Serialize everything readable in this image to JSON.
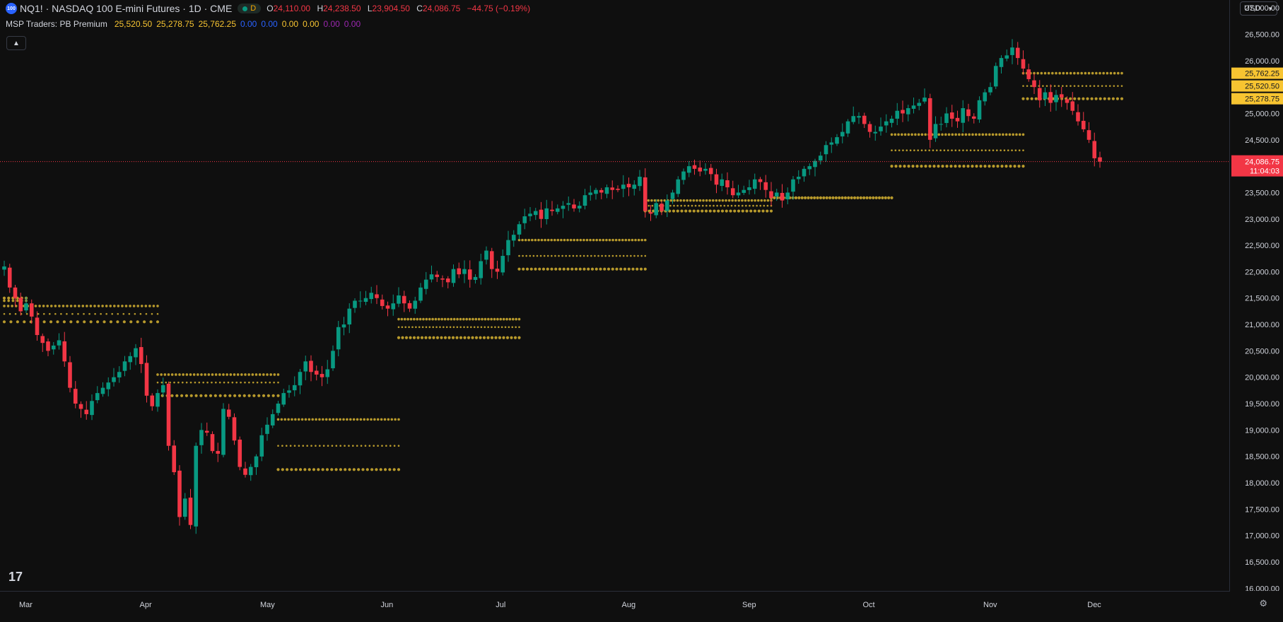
{
  "header": {
    "logo_text": "100",
    "title": "NQ1! · NASDAQ 100 E-mini Futures · 1D · CME",
    "interval_badge": "D",
    "ohlc": [
      {
        "k": "O",
        "v": "24,110.00"
      },
      {
        "k": "H",
        "v": "24,238.50"
      },
      {
        "k": "L",
        "v": "23,904.50"
      },
      {
        "k": "C",
        "v": "24,086.75"
      }
    ],
    "change": "−44.75 (−0.19%)"
  },
  "indicator": {
    "name": "MSP Traders: PB Premium",
    "values": [
      {
        "v": "25,520.50",
        "color": "#f7c431"
      },
      {
        "v": "25,278.75",
        "color": "#f7c431"
      },
      {
        "v": "25,762.25",
        "color": "#f7c431"
      },
      {
        "v": "0.00",
        "color": "#2962ff"
      },
      {
        "v": "0.00",
        "color": "#2962ff"
      },
      {
        "v": "0.00",
        "color": "#f7c431"
      },
      {
        "v": "0.00",
        "color": "#f7c431"
      },
      {
        "v": "0.00",
        "color": "#9c27b0"
      },
      {
        "v": "0.00",
        "color": "#9c27b0"
      }
    ]
  },
  "controls": {
    "collapse_icon": "chevron-up-icon",
    "currency": "USD",
    "tv_logo": "17"
  },
  "colors": {
    "up": "#089981",
    "down": "#f23645",
    "level": "#b89a2c",
    "bg": "#0f0f0f"
  },
  "chart_data": {
    "type": "candlestick",
    "y_ticks": [
      16000,
      16500,
      17000,
      17500,
      18000,
      18500,
      19000,
      19500,
      20000,
      20500,
      21000,
      21500,
      22000,
      22500,
      23000,
      23500,
      24000,
      24500,
      25000,
      25500,
      26000,
      26500,
      27000
    ],
    "ylim": [
      15950,
      27150
    ],
    "x_labels": [
      "Mar",
      "Apr",
      "May",
      "Jun",
      "Jul",
      "Aug",
      "Sep",
      "Oct",
      "Nov",
      "Dec"
    ],
    "months": [
      {
        "label": "Mar",
        "start_index": 4
      },
      {
        "label": "Apr",
        "start_index": 26
      },
      {
        "label": "May",
        "start_index": 48
      },
      {
        "label": "Jun",
        "start_index": 70
      },
      {
        "label": "Jul",
        "start_index": 91
      },
      {
        "label": "Aug",
        "start_index": 114
      },
      {
        "label": "Sep",
        "start_index": 136
      },
      {
        "label": "Oct",
        "start_index": 158
      },
      {
        "label": "Nov",
        "start_index": 180
      },
      {
        "label": "Dec",
        "start_index": 199
      }
    ],
    "closes": [
      22100,
      21700,
      21500,
      21250,
      21400,
      21150,
      20800,
      20650,
      20500,
      20600,
      20700,
      20300,
      19800,
      19500,
      19400,
      19300,
      19550,
      19700,
      19800,
      19900,
      20000,
      20100,
      20300,
      20400,
      20550,
      20250,
      19650,
      19450,
      19700,
      19850,
      18700,
      18200,
      17350,
      17700,
      17200,
      18700,
      19000,
      18950,
      18600,
      18550,
      19400,
      19250,
      18800,
      18300,
      18150,
      18300,
      18500,
      18900,
      19100,
      19300,
      19500,
      19700,
      19750,
      19850,
      20100,
      20300,
      20100,
      20050,
      20000,
      20150,
      20500,
      20950,
      21000,
      21300,
      21450,
      21450,
      21500,
      21600,
      21500,
      21350,
      21300,
      21400,
      21550,
      21400,
      21300,
      21450,
      21700,
      21850,
      21950,
      21900,
      21850,
      21800,
      22050,
      21950,
      22050,
      21850,
      21900,
      22200,
      22400,
      22050,
      22000,
      22300,
      22600,
      22700,
      22900,
      23050,
      23100,
      23150,
      23000,
      23200,
      23150,
      23200,
      23250,
      23300,
      23200,
      23250,
      23450,
      23500,
      23550,
      23500,
      23600,
      23550,
      23550,
      23650,
      23600,
      23650,
      23800,
      23150,
      23100,
      23300,
      23150,
      23350,
      23500,
      23750,
      23900,
      24000,
      23950,
      23900,
      23950,
      23850,
      23650,
      23750,
      23600,
      23450,
      23500,
      23550,
      23600,
      23750,
      23700,
      23550,
      23400,
      23500,
      23350,
      23500,
      23750,
      23800,
      23950,
      24000,
      24100,
      24200,
      24400,
      24450,
      24550,
      24650,
      24850,
      24950,
      24950,
      24800,
      24650,
      24650,
      24750,
      24850,
      24900,
      25050,
      25000,
      25100,
      25150,
      25200,
      25300,
      24500,
      24800,
      24800,
      25000,
      24900,
      24850,
      25100,
      24950,
      24900,
      25250,
      25400,
      25500,
      25900,
      26050,
      26100,
      26250,
      26050,
      25850,
      25650,
      25500,
      25250,
      25400,
      25200,
      25350,
      25300,
      25200,
      25050,
      24850,
      24700,
      24500,
      24150,
      24086.75
    ],
    "bands": [
      {
        "x0": 0,
        "x1": 28,
        "levels": [
          21350,
          21200,
          21050
        ],
        "dots": [
          40,
          28,
          24
        ]
      },
      {
        "x0": 0,
        "x1": 4,
        "levels": [
          21450,
          21500
        ],
        "dots": [
          6,
          6
        ]
      },
      {
        "x0": 28,
        "x1": 50,
        "levels": [
          20050,
          19900,
          19650
        ],
        "dots": [
          34,
          30,
          26
        ]
      },
      {
        "x0": 50,
        "x1": 72,
        "levels": [
          19200,
          18700,
          18250
        ],
        "dots": [
          36,
          30,
          28
        ]
      },
      {
        "x0": 72,
        "x1": 94,
        "levels": [
          21100,
          20950,
          20750
        ],
        "dots": [
          40,
          36,
          32
        ]
      },
      {
        "x0": 94,
        "x1": 117,
        "levels": [
          22600,
          22300,
          22050
        ],
        "dots": [
          40,
          36,
          32
        ]
      },
      {
        "x0": 117,
        "x1": 140,
        "levels": [
          23350,
          23250,
          23150
        ],
        "dots": [
          40,
          36,
          32
        ]
      },
      {
        "x0": 140,
        "x1": 162,
        "levels": [
          23400
        ],
        "dots": [
          40
        ]
      },
      {
        "x0": 162,
        "x1": 186,
        "levels": [
          24600,
          24300,
          24000
        ],
        "dots": [
          40,
          36,
          32
        ]
      },
      {
        "x0": 186,
        "x1": 204,
        "levels": [
          25762.25,
          25520.5,
          25278.75
        ],
        "dots": [
          28,
          26,
          24
        ]
      }
    ],
    "price_labels": [
      {
        "text": "25,762.25",
        "value": 25762.25
      },
      {
        "text": "25,520.50",
        "value": 25520.5
      },
      {
        "text": "25,278.75",
        "value": 25278.75
      }
    ],
    "last_price": {
      "value": 24086.75,
      "text": "24,086.75",
      "countdown": "11:04:03"
    }
  }
}
